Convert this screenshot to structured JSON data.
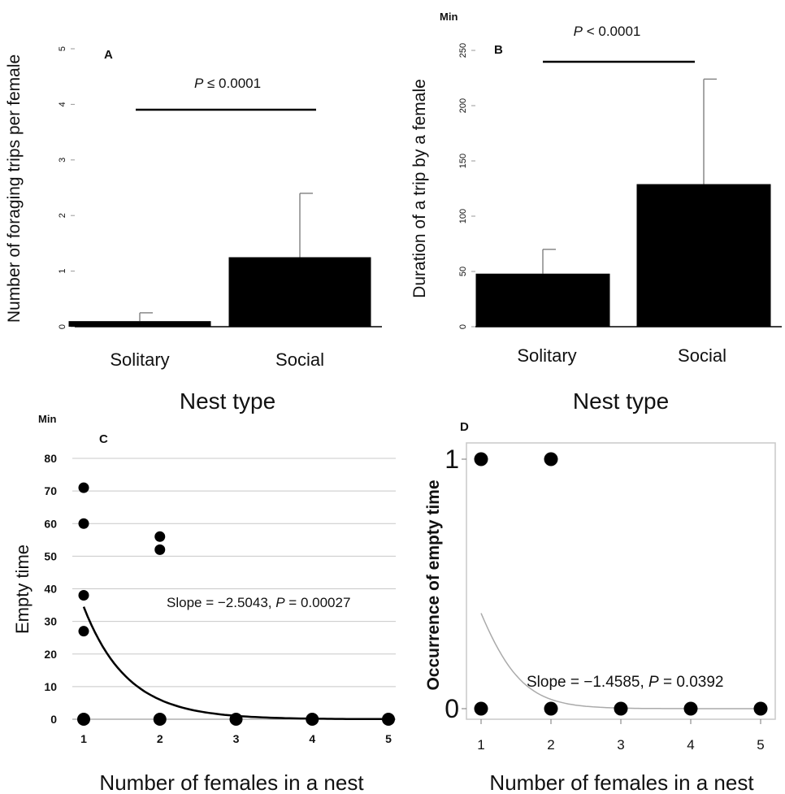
{
  "chart_data": [
    {
      "panel": "A",
      "type": "bar",
      "categories": [
        "Solitary",
        "Social"
      ],
      "values": [
        0.1,
        1.25
      ],
      "errors": [
        0.15,
        1.15
      ],
      "xlabel": "Nest type",
      "ylabel": "Number of foraging trips per female",
      "ylim": [
        0,
        5
      ],
      "yticks": [
        "0",
        "1",
        "2",
        "3",
        "4",
        "5"
      ],
      "annotation": "P ≤ 0.0001",
      "annotation_italic": "P",
      "annotation_rest": " ≤ 0.0001",
      "bar_color": "#000000"
    },
    {
      "panel": "B",
      "type": "bar",
      "categories": [
        "Solitary",
        "Social"
      ],
      "values": [
        48,
        129
      ],
      "errors": [
        22,
        95
      ],
      "xlabel": "Nest type",
      "ylabel": "Duration of a trip by a female",
      "unit": "Min",
      "ylim": [
        0,
        250
      ],
      "yticks": [
        "0",
        "50",
        "100",
        "150",
        "200",
        "250"
      ],
      "annotation_italic": "P",
      "annotation_rest": " < 0.0001",
      "bar_color": "#000000"
    },
    {
      "panel": "C",
      "type": "scatter",
      "x": [
        1,
        1,
        1,
        1,
        1,
        2,
        2,
        2,
        3,
        4,
        5
      ],
      "y": [
        71,
        60,
        38,
        27,
        0,
        56,
        52,
        0,
        0,
        0,
        0
      ],
      "fit_curve": {
        "type": "exponential",
        "a": 34.5,
        "b": -1.75
      },
      "xlabel": "Number of females in a nest",
      "ylabel": "Empty time",
      "unit": "Min",
      "xlim": [
        1,
        5
      ],
      "ylim": [
        0,
        80
      ],
      "xticks": [
        "1",
        "2",
        "3",
        "4",
        "5"
      ],
      "yticks": [
        "0",
        "10",
        "20",
        "30",
        "40",
        "50",
        "60",
        "70",
        "80"
      ],
      "grid": true,
      "annotation_pre": "Slope = −2.5043, ",
      "annotation_italic": "P",
      "annotation_post": " = 0.00027"
    },
    {
      "panel": "D",
      "type": "scatter",
      "x": [
        1,
        2,
        1,
        2,
        3,
        4,
        5
      ],
      "y": [
        1,
        1,
        0,
        0,
        0,
        0,
        0
      ],
      "fit_curve": {
        "type": "logistic",
        "intercept": 0.92,
        "slope": -1.4585
      },
      "xlabel": "Number of females in a nest",
      "ylabel": "Occurrence of empty time",
      "xlim": [
        1,
        5
      ],
      "ylim": [
        0,
        1
      ],
      "xticks": [
        "1",
        "2",
        "3",
        "4",
        "5"
      ],
      "yticks": [
        "0",
        "1"
      ],
      "annotation_pre": "Slope = −1.4585, ",
      "annotation_italic": "P",
      "annotation_post": " = 0.0392"
    }
  ],
  "colors": {
    "marks": "#000000",
    "grid": "#c8c8c8",
    "errorbar": "#888888",
    "fit_d": "#aaaaaa"
  }
}
